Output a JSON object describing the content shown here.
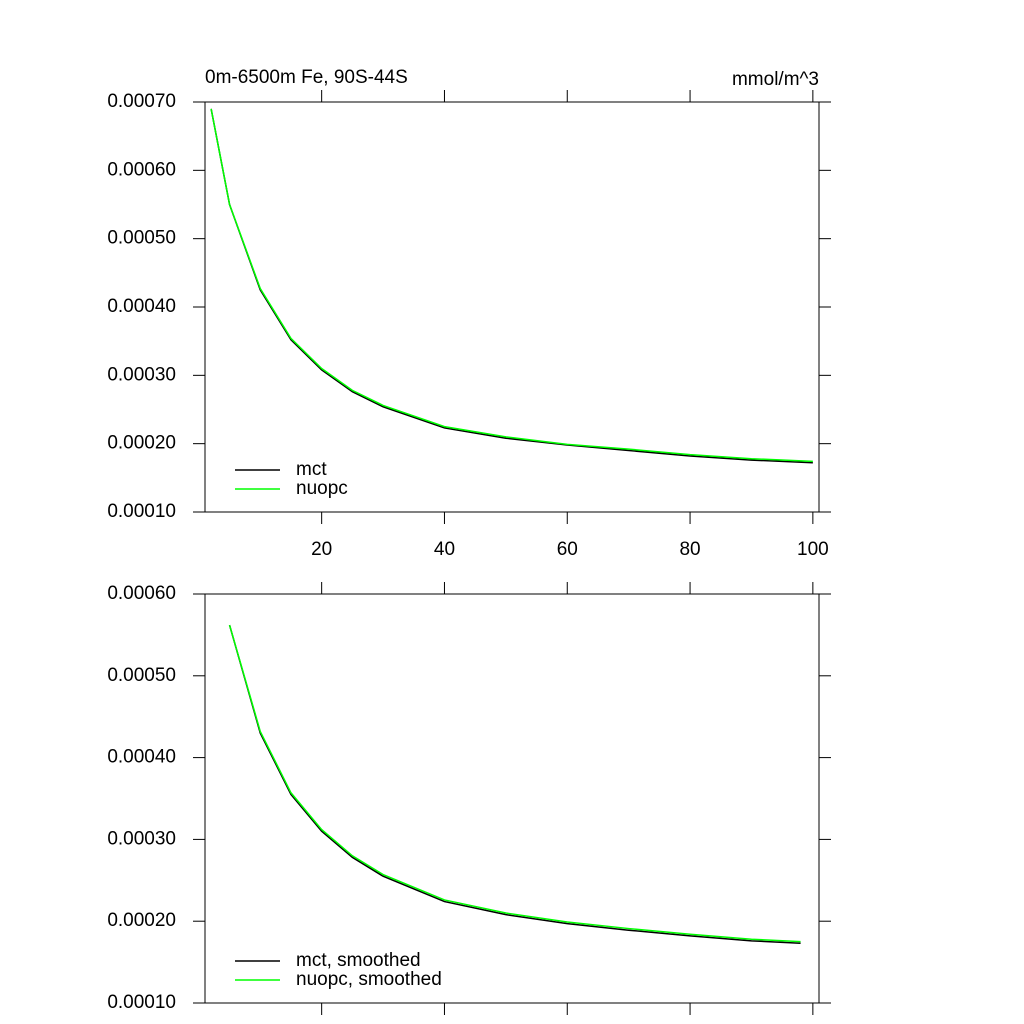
{
  "chart_data": [
    {
      "type": "line",
      "title": "0m-6500m Fe, 90S-44S",
      "units": "mmol/m^3",
      "x": [
        2,
        5,
        10,
        15,
        20,
        25,
        30,
        40,
        50,
        60,
        70,
        80,
        90,
        100
      ],
      "series": [
        {
          "name": "mct",
          "color": "#000000",
          "values": [
            0.00069,
            0.00055,
            0.000425,
            0.000352,
            0.000308,
            0.000276,
            0.000254,
            0.000223,
            0.000208,
            0.000198,
            0.00019,
            0.000182,
            0.000176,
            0.000172
          ]
        },
        {
          "name": "nuopc",
          "color": "#00ff00",
          "values": [
            0.00069,
            0.00055,
            0.000427,
            0.000354,
            0.00031,
            0.000278,
            0.000256,
            0.000225,
            0.00021,
            0.000199,
            0.000192,
            0.000184,
            0.000178,
            0.000174
          ]
        }
      ],
      "xlim": [
        1,
        101
      ],
      "xticks": [
        20,
        40,
        60,
        80,
        100
      ],
      "show_xtick_labels": true,
      "ylim": [
        0.0001,
        0.0007
      ],
      "yticks": [
        {
          "value": 0.0001,
          "label": "0.00010"
        },
        {
          "value": 0.0002,
          "label": "0.00020"
        },
        {
          "value": 0.0003,
          "label": "0.00030"
        },
        {
          "value": 0.0004,
          "label": "0.00040"
        },
        {
          "value": 0.0005,
          "label": "0.00050"
        },
        {
          "value": 0.0006,
          "label": "0.00060"
        },
        {
          "value": 0.0007,
          "label": "0.00070"
        }
      ],
      "legend": "lower-left"
    },
    {
      "type": "line",
      "x": [
        5,
        10,
        15,
        20,
        25,
        30,
        40,
        50,
        60,
        70,
        80,
        90,
        98
      ],
      "series": [
        {
          "name": "mct, smoothed",
          "color": "#000000",
          "values": [
            0.000562,
            0.00043,
            0.000355,
            0.00031,
            0.000278,
            0.000255,
            0.000224,
            0.000208,
            0.000197,
            0.000189,
            0.000182,
            0.000176,
            0.000173
          ]
        },
        {
          "name": "nuopc, smoothed",
          "color": "#00ff00",
          "values": [
            0.000562,
            0.000432,
            0.000357,
            0.000312,
            0.00028,
            0.000257,
            0.000226,
            0.00021,
            0.000199,
            0.000191,
            0.000184,
            0.000178,
            0.000175
          ]
        }
      ],
      "xlim": [
        1,
        101
      ],
      "xticks": [
        20,
        40,
        60,
        80,
        100
      ],
      "show_xtick_labels": false,
      "ylim": [
        0.0001,
        0.0006
      ],
      "yticks": [
        {
          "value": 0.0001,
          "label": "0.00010"
        },
        {
          "value": 0.0002,
          "label": "0.00020"
        },
        {
          "value": 0.0003,
          "label": "0.00030"
        },
        {
          "value": 0.0004,
          "label": "0.00040"
        },
        {
          "value": 0.0005,
          "label": "0.00050"
        },
        {
          "value": 0.0006,
          "label": "0.00060"
        }
      ],
      "legend": "lower-left"
    }
  ]
}
